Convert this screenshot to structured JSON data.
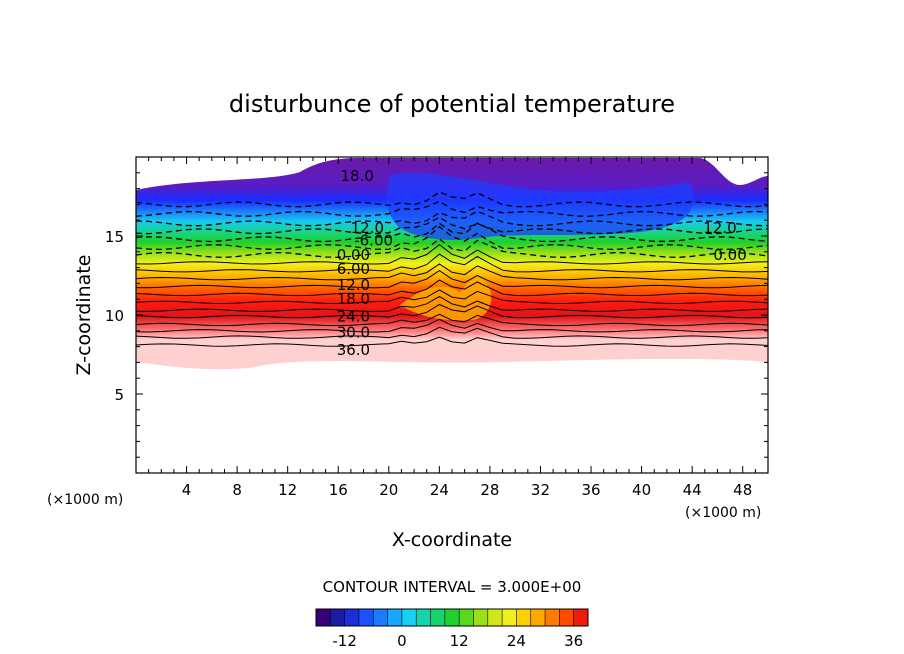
{
  "chart_data": {
    "type": "heatmap",
    "title": "disturbunce of potential temperature",
    "xlabel": "X-coordinate",
    "ylabel": "Z-coordinate",
    "x_unit_left": "(×1000 m)",
    "x_unit_right": "(×1000 m)",
    "xlim": [
      0,
      50
    ],
    "ylim": [
      0,
      20
    ],
    "x_ticks": [
      4,
      8,
      12,
      16,
      20,
      24,
      28,
      32,
      36,
      40,
      44,
      48
    ],
    "x_tick_labels": [
      "4",
      "8",
      "12",
      "16",
      "20",
      "24",
      "28",
      "32",
      "36",
      "40",
      "44",
      "48"
    ],
    "y_ticks": [
      5,
      10,
      15
    ],
    "y_tick_labels": [
      "5",
      "10",
      "15"
    ],
    "contour_interval_text": "CONTOUR INTERVAL = 3.000E+00",
    "contour_interval": 3.0,
    "contour_labels": [
      {
        "text": "18.0",
        "x": 17.5,
        "z": 18.8
      },
      {
        "text": "12.0",
        "x": 18.3,
        "z": 15.5
      },
      {
        "text": "-6.00",
        "x": 18.8,
        "z": 14.7
      },
      {
        "text": "0.00",
        "x": 17.2,
        "z": 13.8
      },
      {
        "text": "6.00",
        "x": 17.2,
        "z": 12.9
      },
      {
        "text": "12.0",
        "x": 17.2,
        "z": 11.9
      },
      {
        "text": "18.0",
        "x": 17.2,
        "z": 11.0
      },
      {
        "text": "24.0",
        "x": 17.2,
        "z": 9.9
      },
      {
        "text": "30.0",
        "x": 17.2,
        "z": 8.9
      },
      {
        "text": "36.0",
        "x": 17.2,
        "z": 7.8
      },
      {
        "text": "12.0",
        "x": 46.2,
        "z": 15.5
      },
      {
        "text": "0.00",
        "x": 47.0,
        "z": 13.8
      }
    ],
    "colorbar": {
      "min": -18,
      "max": 39,
      "tick_values": [
        -12,
        0,
        12,
        24,
        36
      ],
      "tick_labels": [
        "-12",
        "0",
        "12",
        "24",
        "36"
      ]
    }
  }
}
